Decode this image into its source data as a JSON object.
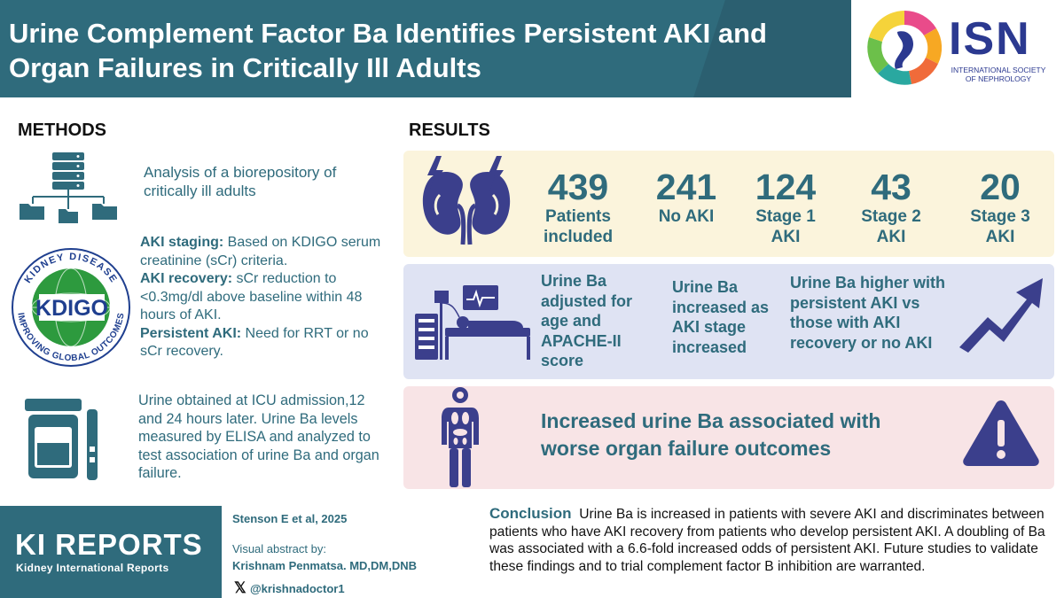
{
  "header": {
    "title_line1": "Urine Complement Factor Ba Identifies Persistent AKI and",
    "title_line2": "Organ Failures in Critically Ill Adults",
    "logo_text": "ISN",
    "logo_sub": "INTERNATIONAL SOCIETY OF NEPHROLOGY"
  },
  "methods": {
    "title": "METHODS",
    "item1": "Analysis of a biorepository of critically ill adults",
    "kdigo_logo": "KIDNEY DISEASE IMPROVING GLOBAL OUTCOMES",
    "staging_label": "AKI staging:",
    "staging_text": " Based on KDIGO serum creatinine (sCr) criteria.",
    "recovery_label": "AKI recovery:",
    "recovery_text": " sCr reduction to <0.3mg/dl above baseline within 48 hours of AKI.",
    "persistent_label": "Persistent AKI:",
    "persistent_text": " Need for RRT or no sCr recovery.",
    "item3": "Urine obtained at ICU admission,12 and 24 hours later. Urine Ba levels measured by ELISA and analyzed to test association of urine Ba and organ failure."
  },
  "results": {
    "title": "RESULTS",
    "stats": [
      {
        "num": "439",
        "label": "Patients included"
      },
      {
        "num": "241",
        "label": "No AKI"
      },
      {
        "num": "124",
        "label": "Stage 1 AKI"
      },
      {
        "num": "43",
        "label": "Stage 2 AKI"
      },
      {
        "num": "20",
        "label": "Stage 3 AKI"
      }
    ],
    "finding1": "Urine Ba adjusted for age and APACHE-II score",
    "finding2": "Urine Ba increased as AKI stage increased",
    "finding3": "Urine Ba higher with persistent AKI vs those with AKI recovery or no AKI",
    "outcome": "Increased urine Ba associated with worse organ failure outcomes"
  },
  "footer": {
    "journal": "KI REPORTS",
    "journal_sub": "Kidney International Reports",
    "citation": "Stenson E et al, 2025",
    "va_label": "Visual abstract by:",
    "va_author": "Krishnam Penmatsa. MD,DM,DNB",
    "handle": "@krishnadoctor1",
    "conclusion_title": "Conclusion",
    "conclusion_text": "Urine Ba is increased in patients with severe AKI and discriminates between patients who have AKI recovery from patients who develop persistent AKI. A doubling of Ba was associated with a 6.6-fold increased odds of persistent AKI. Future studies to validate these findings and to trial complement factor B inhibition are warranted."
  },
  "colors": {
    "teal": "#2f6b7c",
    "navy": "#2b3990",
    "panel_yellow": "#fbf4dc",
    "panel_blue": "#dfe3f3",
    "panel_pink": "#f8e4e6",
    "icon_navy": "#3b3f8c"
  }
}
